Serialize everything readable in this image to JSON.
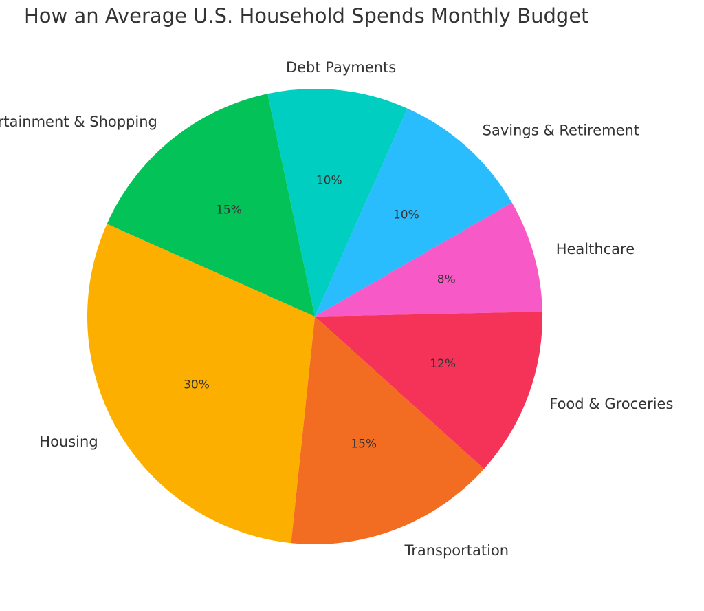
{
  "chart_data": {
    "type": "pie",
    "title": "How an Average U.S. Household Spends Monthly Budget",
    "start_angle_deg": 102,
    "direction": "clockwise",
    "slices": [
      {
        "label": "Debt Payments",
        "value": 10,
        "pct_label": "10%",
        "color": "#00CEC1"
      },
      {
        "label": "Savings & Retirement",
        "value": 10,
        "pct_label": "10%",
        "color": "#29BDFD"
      },
      {
        "label": "Healthcare",
        "value": 8,
        "pct_label": "8%",
        "color": "#F759C6"
      },
      {
        "label": "Food & Groceries",
        "value": 12,
        "pct_label": "12%",
        "color": "#F53358"
      },
      {
        "label": "Transportation",
        "value": 15,
        "pct_label": "15%",
        "color": "#F26C21"
      },
      {
        "label": "Housing",
        "value": 30,
        "pct_label": "30%",
        "color": "#FDAF00"
      },
      {
        "label": "Entertainment & Shopping",
        "value": 15,
        "pct_label": "15%",
        "color": "#02C258"
      }
    ]
  }
}
